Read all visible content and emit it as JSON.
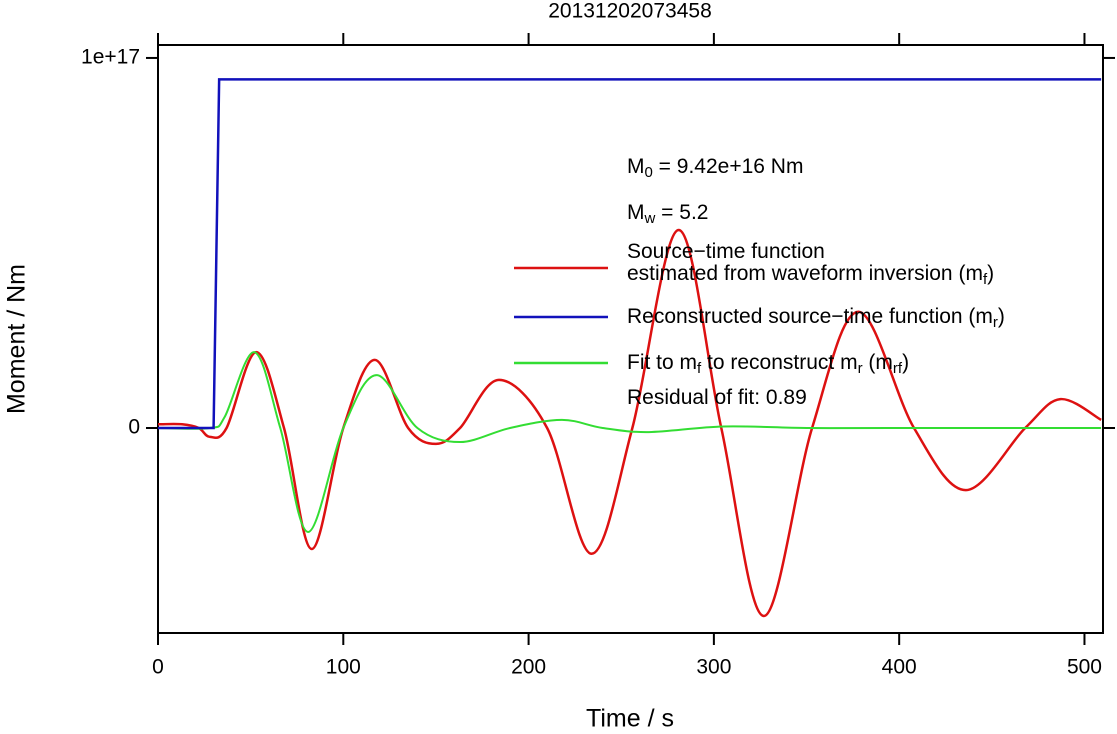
{
  "chart_data": {
    "type": "line",
    "title": "20131202073458",
    "x_label": "Time / s",
    "y_label": "Moment / Nm",
    "xlim": [
      0,
      510
    ],
    "ylim": [
      -5.54e+16,
      1.035e+17
    ],
    "xticks": [
      0,
      100,
      200,
      300,
      400,
      500
    ],
    "yticks": [
      0,
      {
        "value": 1e+17,
        "label": "1e+17"
      }
    ],
    "annotations": [
      [
        "M",
        "0",
        " = 9.42e+16 Nm"
      ],
      [
        "M",
        "w",
        " = 5.2"
      ],
      [
        "Residual of fit: 0.89"
      ]
    ],
    "series": [
      {
        "name": [
          [
            "Source−time function"
          ],
          [
            "estimated from waveform inversion (m",
            "f",
            ")"
          ]
        ],
        "color": "#dd1111",
        "x": [
          0,
          13,
          22,
          28,
          37,
          53,
          68,
          83,
          100,
          117,
          135,
          150,
          163,
          184,
          210,
          234,
          256,
          281,
          304,
          327,
          353,
          378,
          408,
          436,
          468,
          487,
          509
        ],
        "values": [
          1000000000000000.0,
          1000000000000000.0,
          0,
          -2400000000000000.0,
          0,
          2.05e+16,
          0,
          -3.27e+16,
          0,
          1.84e+16,
          0,
          -4300000000000000.0,
          0,
          1.3e+16,
          0,
          -3.4e+16,
          0,
          5.35e+16,
          0,
          -5.08e+16,
          0,
          3.14e+16,
          0,
          -1.68e+16,
          0,
          7800000000000000.0,
          2200000000000000.0
        ]
      },
      {
        "name": [
          [
            "Reconstructed source−time function (m",
            "r",
            ")"
          ]
        ],
        "color": "#1111bb",
        "x": [
          0,
          30,
          33,
          509
        ],
        "values": [
          0,
          0,
          9.42e+16,
          9.42e+16
        ]
      },
      {
        "name": [
          [
            "Fit to m",
            "f",
            " to reconstruct m",
            "r",
            " (m",
            "rf",
            ")"
          ]
        ],
        "color": "#33dd33",
        "x": [
          0,
          28,
          36,
          52,
          66,
          81,
          100,
          118,
          140,
          163,
          190,
          218,
          240,
          265,
          305,
          350,
          400,
          509
        ],
        "values": [
          0,
          0,
          3000000000000000.0,
          2.05e+16,
          0,
          -2.81e+16,
          0,
          1.43e+16,
          0,
          -3800000000000000.0,
          0,
          2200000000000000.0,
          0,
          -1100000000000000.0,
          400000000000000.0,
          0,
          0,
          0
        ]
      }
    ]
  }
}
